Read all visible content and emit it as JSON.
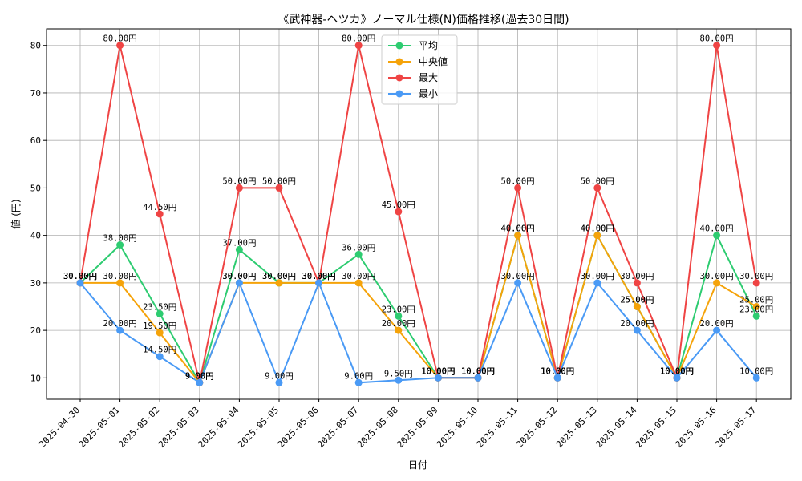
{
  "chart_data": {
    "type": "line",
    "title": "《武神器-ヘツカ》ノーマル仕様(N)価格推移(過去30日間)",
    "xlabel": "日付",
    "ylabel": "値 (円)",
    "value_suffix": "円",
    "ylim": [
      5.5,
      83.5
    ],
    "yticks": [
      10,
      20,
      30,
      40,
      50,
      60,
      70,
      80
    ],
    "grid": true,
    "legend_position": "top-center",
    "categories": [
      "2025-04-30",
      "2025-05-01",
      "2025-05-02",
      "2025-05-03",
      "2025-05-04",
      "2025-05-05",
      "2025-05-06",
      "2025-05-07",
      "2025-05-08",
      "2025-05-09",
      "2025-05-10",
      "2025-05-11",
      "2025-05-12",
      "2025-05-13",
      "2025-05-14",
      "2025-05-15",
      "2025-05-16",
      "2025-05-17"
    ],
    "series": [
      {
        "name": "平均",
        "color": "#2ecc71",
        "values": [
          30,
          38,
          23.5,
          9,
          37,
          30,
          30,
          36,
          23,
          10,
          10,
          40,
          10,
          40,
          25,
          10,
          40,
          23
        ]
      },
      {
        "name": "中央値",
        "color": "#f5a30a",
        "values": [
          30,
          30,
          19.5,
          9,
          30,
          30,
          30,
          30,
          20,
          10,
          10,
          40,
          10,
          40,
          25,
          10,
          30,
          25
        ]
      },
      {
        "name": "最大",
        "color": "#ef4444",
        "values": [
          30,
          80,
          44.5,
          9,
          50,
          50,
          30,
          80,
          45,
          10,
          10,
          50,
          10,
          50,
          30,
          10,
          80,
          30
        ]
      },
      {
        "name": "最小",
        "color": "#4a9af5",
        "values": [
          30,
          20,
          14.5,
          9,
          30,
          9,
          30,
          9,
          9.5,
          10,
          10,
          30,
          10,
          30,
          20,
          10,
          20,
          10
        ]
      }
    ]
  }
}
